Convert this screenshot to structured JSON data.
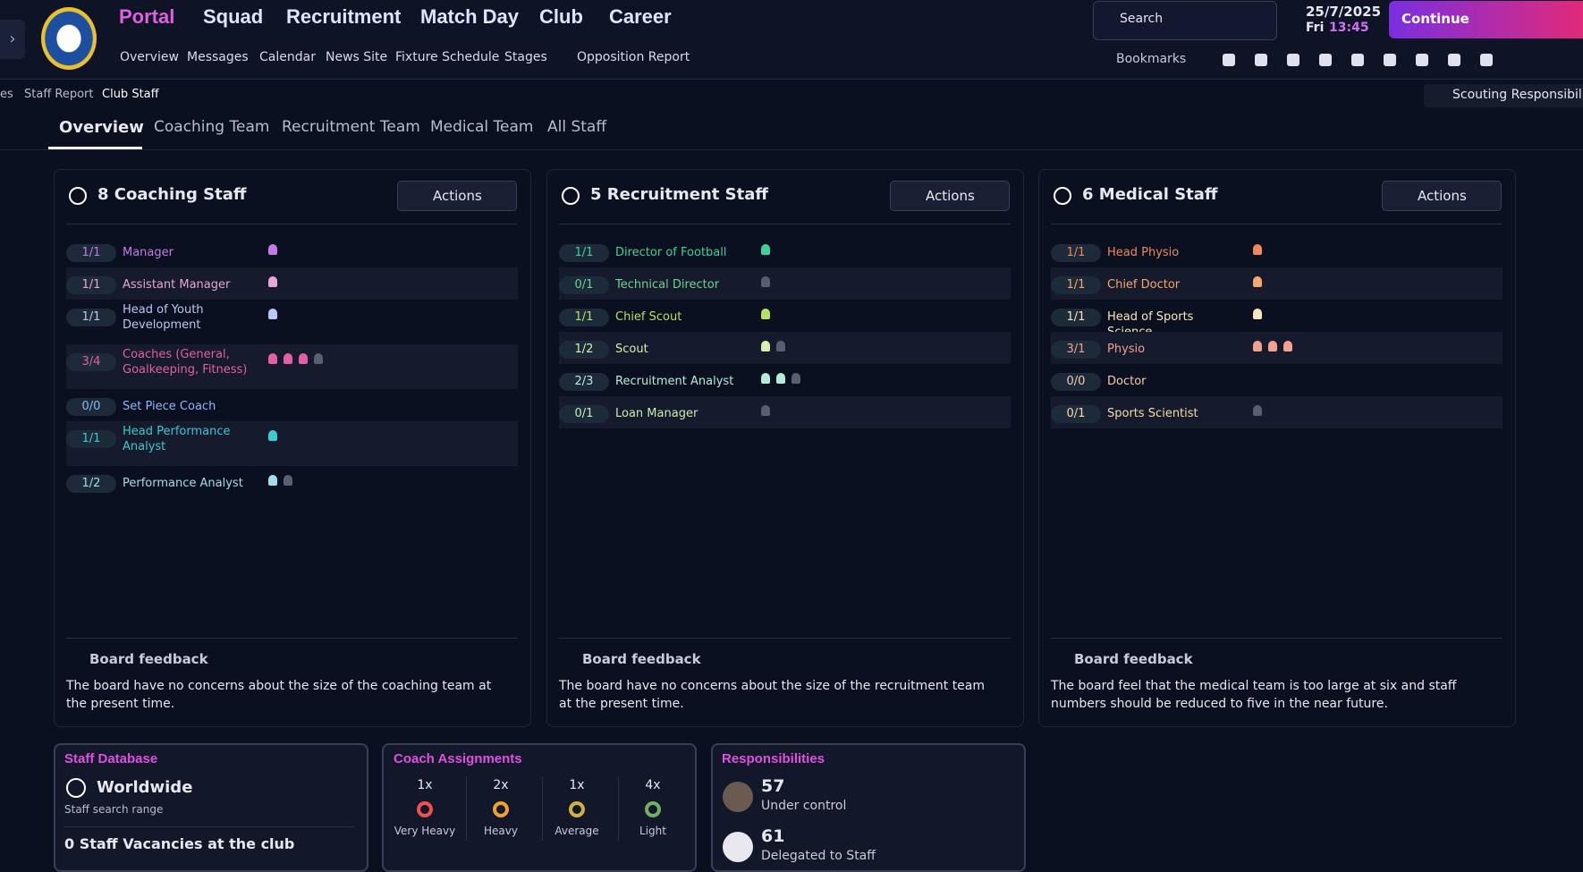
{
  "nav": {
    "menus": [
      "Portal",
      "Squad",
      "Recruitment",
      "Match Day",
      "Club",
      "Career"
    ],
    "submenu": [
      "Overview",
      "Messages",
      "Calendar",
      "News Site",
      "Fixture Schedule",
      "Stages",
      "Opposition Report"
    ],
    "search": "Search",
    "date": "25/7/2025",
    "day": "Fri",
    "time": "13:45",
    "continue": "Continue",
    "bookmarks": "Bookmarks"
  },
  "breadcrumb": [
    "es",
    "Staff Report",
    "Club Staff"
  ],
  "scouting": "Scouting Responsibilit",
  "tabs": [
    "Overview",
    "Coaching Team",
    "Recruitment Team",
    "Medical Team",
    "All Staff"
  ],
  "panels": [
    {
      "title": "8 Coaching Staff",
      "actions": "Actions",
      "feedback_title": "Board feedback",
      "feedback": "The board have no concerns about the size of the coaching team at the present time.",
      "roles": [
        {
          "count": "1/1",
          "name": "Manager",
          "filled": 1,
          "vacant": 0,
          "color": "#c27ae8"
        },
        {
          "count": "1/1",
          "name": "Assistant Manager",
          "filled": 1,
          "vacant": 0,
          "color": "#e7a6d8"
        },
        {
          "count": "1/1",
          "name": "Head of Youth Development",
          "filled": 1,
          "vacant": 0,
          "color": "#b9c7f2"
        },
        {
          "count": "3/4",
          "name": "Coaches (General, Goalkeeping, Fitness)",
          "filled": 3,
          "vacant": 1,
          "color": "#e45fa6"
        },
        {
          "count": "0/0",
          "name": "Set Piece Coach",
          "filled": 0,
          "vacant": 0,
          "color": "#8fb6f7"
        },
        {
          "count": "1/1",
          "name": "Head Performance Analyst",
          "filled": 1,
          "vacant": 0,
          "color": "#3cc9cf"
        },
        {
          "count": "1/2",
          "name": "Performance Analyst",
          "filled": 1,
          "vacant": 1,
          "color": "#a3dcea"
        }
      ]
    },
    {
      "title": "5 Recruitment Staff",
      "actions": "Actions",
      "feedback_title": "Board feedback",
      "feedback": "The board have no concerns about the size of the recruitment team at the present time.",
      "roles": [
        {
          "count": "1/1",
          "name": "Director of Football",
          "filled": 1,
          "vacant": 0,
          "color": "#3fcf9a"
        },
        {
          "count": "0/1",
          "name": "Technical Director",
          "filled": 0,
          "vacant": 1,
          "color": "#6fd38a"
        },
        {
          "count": "1/1",
          "name": "Chief Scout",
          "filled": 1,
          "vacant": 0,
          "color": "#b5e063"
        },
        {
          "count": "1/2",
          "name": "Scout",
          "filled": 1,
          "vacant": 1,
          "color": "#d6f0b0"
        },
        {
          "count": "2/3",
          "name": "Recruitment Analyst",
          "filled": 2,
          "vacant": 1,
          "color": "#b4ecd8"
        },
        {
          "count": "0/1",
          "name": "Loan Manager",
          "filled": 0,
          "vacant": 1,
          "color": "#c9edb0"
        }
      ]
    },
    {
      "title": "6 Medical Staff",
      "actions": "Actions",
      "feedback_title": "Board feedback",
      "feedback": "The board feel that the medical team is too large at six and staff numbers should be reduced to five in the near future.",
      "roles": [
        {
          "count": "1/1",
          "name": "Head Physio",
          "filled": 1,
          "vacant": 0,
          "color": "#f0885a"
        },
        {
          "count": "1/1",
          "name": "Chief Doctor",
          "filled": 1,
          "vacant": 0,
          "color": "#f7a86a"
        },
        {
          "count": "1/1",
          "name": "Head of Sports Science",
          "filled": 1,
          "vacant": 0,
          "color": "#f8e6c0"
        },
        {
          "count": "3/1",
          "name": "Physio",
          "filled": 3,
          "vacant": 0,
          "color": "#f3a090"
        },
        {
          "count": "0/0",
          "name": "Doctor",
          "filled": 0,
          "vacant": 0,
          "color": "#f7c9a8"
        },
        {
          "count": "0/1",
          "name": "Sports Scientist",
          "filled": 0,
          "vacant": 1,
          "color": "#f5dca8"
        }
      ]
    }
  ],
  "staff_database": {
    "title": "Staff Database",
    "range": "Worldwide",
    "range_label": "Staff search range",
    "vacancies": "0 Staff Vacancies at the club"
  },
  "coach_assignments": {
    "title": "Coach Assignments",
    "items": [
      {
        "count": "1x",
        "label": "Very Heavy",
        "color": "#f05050"
      },
      {
        "count": "2x",
        "label": "Heavy",
        "color": "#f0a030"
      },
      {
        "count": "1x",
        "label": "Average",
        "color": "#d0b040"
      },
      {
        "count": "4x",
        "label": "Light",
        "color": "#70b060"
      }
    ]
  },
  "responsibilities": {
    "title": "Responsibilities",
    "items": [
      {
        "value": 57,
        "label": "Under control"
      },
      {
        "value": 61,
        "label": "Delegated to Staff"
      }
    ]
  }
}
